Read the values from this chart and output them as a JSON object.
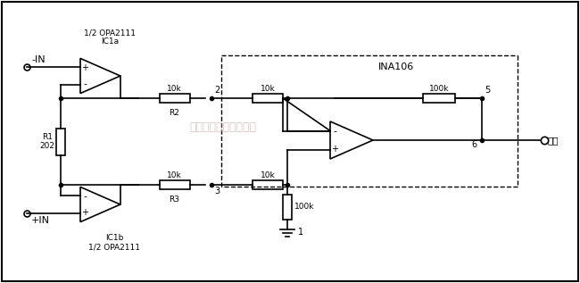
{
  "bg_color": "#ffffff",
  "border_color": "#000000",
  "title": "",
  "watermark": "杭州将睿科技有限公司",
  "watermark_color": "#c8a0a0",
  "ina106_label": "INA106",
  "ic1a_label": "1/2 OPA2111\nIC1a",
  "ic1b_label": "IC1b\n1/2 OPA2111",
  "r1_label": "R1\n202",
  "r2_label": "R2",
  "r3_label": "R3",
  "r2_val": "10k",
  "r3_val": "10k",
  "r4_val": "10k",
  "r5_val": "10k",
  "r6_val": "100k",
  "r7_val": "100k",
  "minus_in": "-IN",
  "plus_in": "+IN",
  "output_label": "输出",
  "node1": "1",
  "node2": "2",
  "node3": "3",
  "node5": "5",
  "node6": "6",
  "line_color": "#000000",
  "dashed_color": "#000000",
  "text_color": "#000000"
}
